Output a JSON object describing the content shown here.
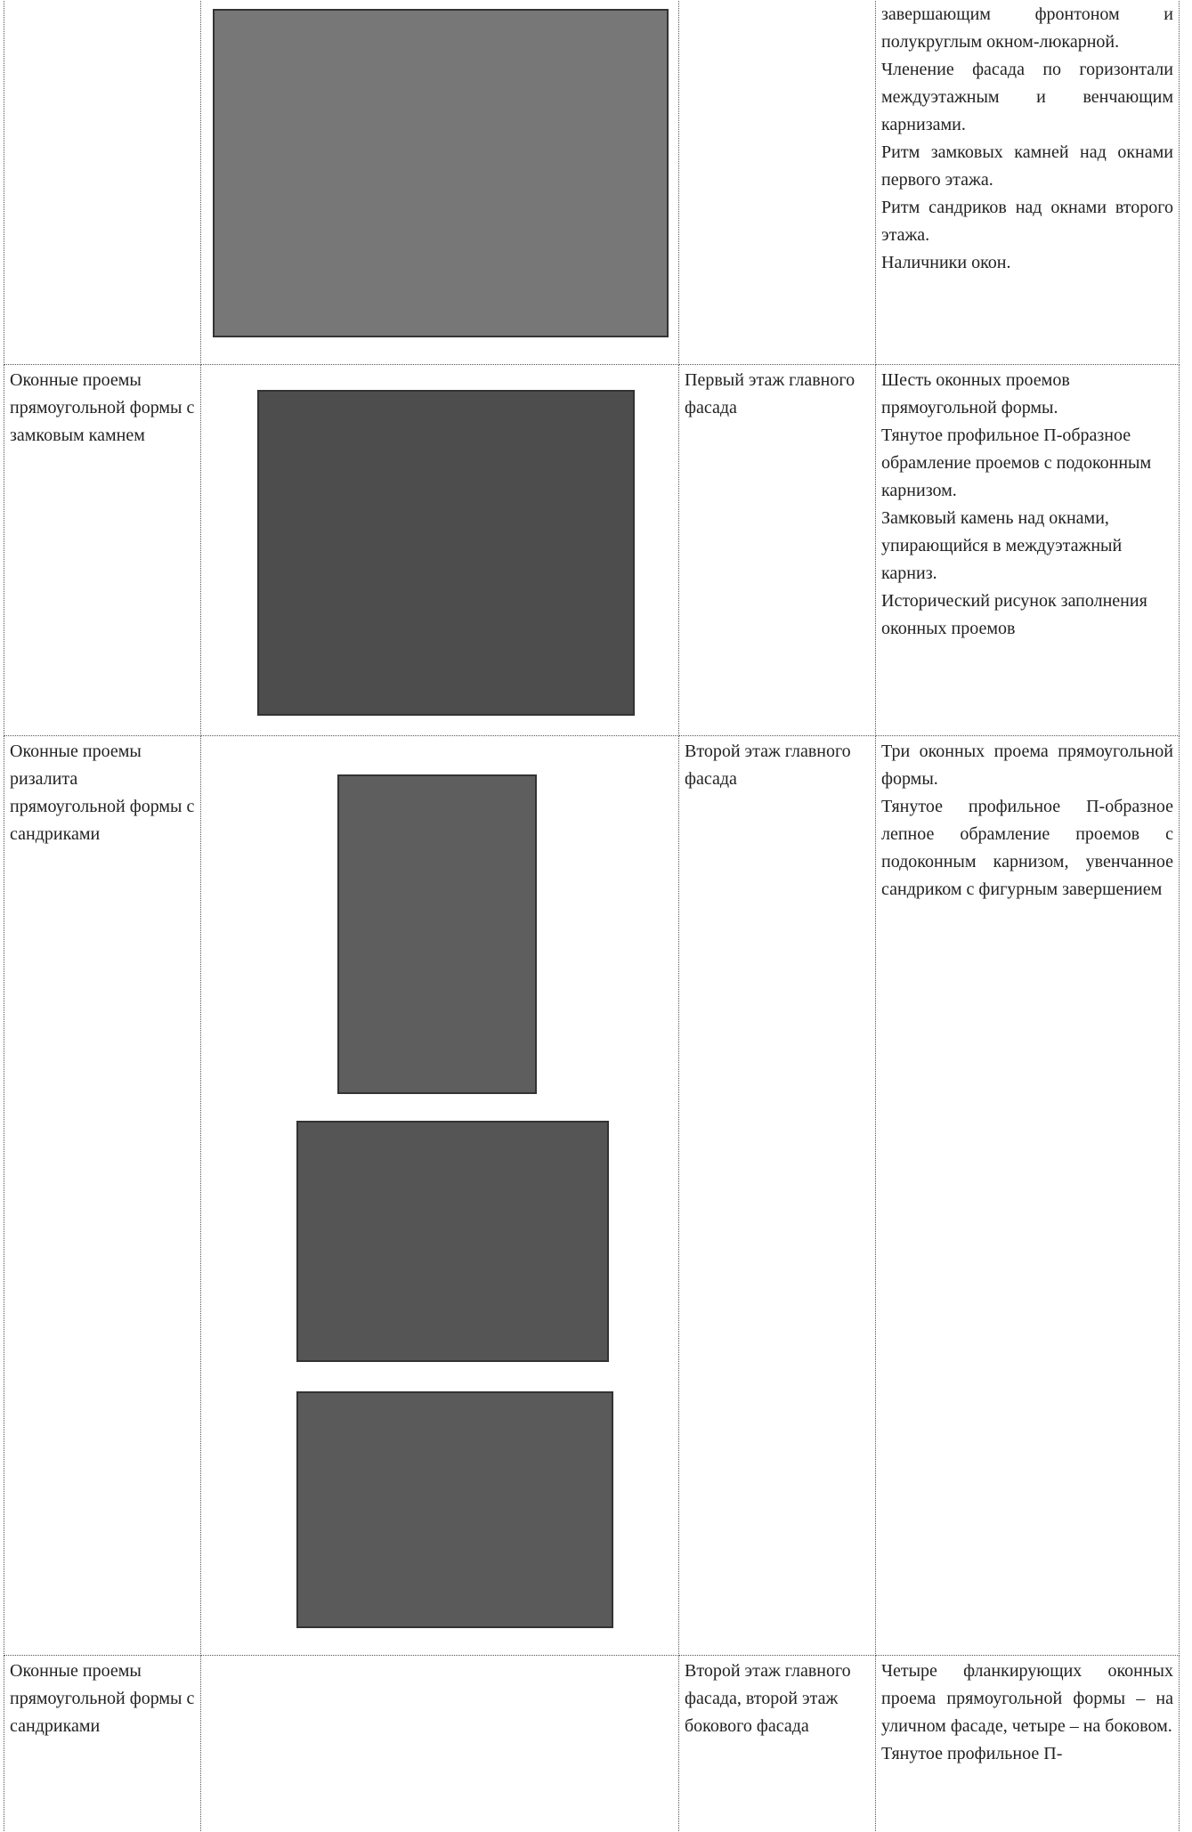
{
  "table": {
    "rows": [
      {
        "description": [
          "завершающим фронтоном и полукруглым окном-люкарной.",
          "Членение фасада по горизонтали междуэтажным и венчающим карнизами.",
          "Ритм замковых камней над окнами первого этажа.",
          "Ритм сандриков над окнами второго этажа.",
          "Наличники окон."
        ]
      },
      {
        "element": "Оконные проемы прямоугольной формы с замковым камнем",
        "location": "Первый этаж главного фасада",
        "description": [
          "Шесть оконных проемов прямоугольной формы.",
          "Тянутое профильное П-образное обрамление проемов с подоконным карнизом.",
          "Замковый камень над окнами, упирающийся в междуэтажный карниз.",
          "Исторический рисунок заполнения оконных проемов"
        ]
      },
      {
        "element": "Оконные проемы ризалита прямоугольной формы с сандриками",
        "location": "Второй этаж главного фасада",
        "description": [
          "Три оконных проема прямоугольной формы.",
          "Тянутое профильное П-образное лепное обрамление проемов с подоконным карнизом, увенчанное сандриком с фигурным завершением"
        ]
      },
      {
        "element": "Оконные проемы прямоугольной формы с сандриками",
        "location": "Второй этаж главного фасада, второй этаж бокового фасада",
        "description": [
          "Четыре фланкирующих оконных проема прямоугольной формы – на уличном фасаде, четыре – на боковом.",
          "Тянутое профильное П-"
        ]
      }
    ]
  }
}
